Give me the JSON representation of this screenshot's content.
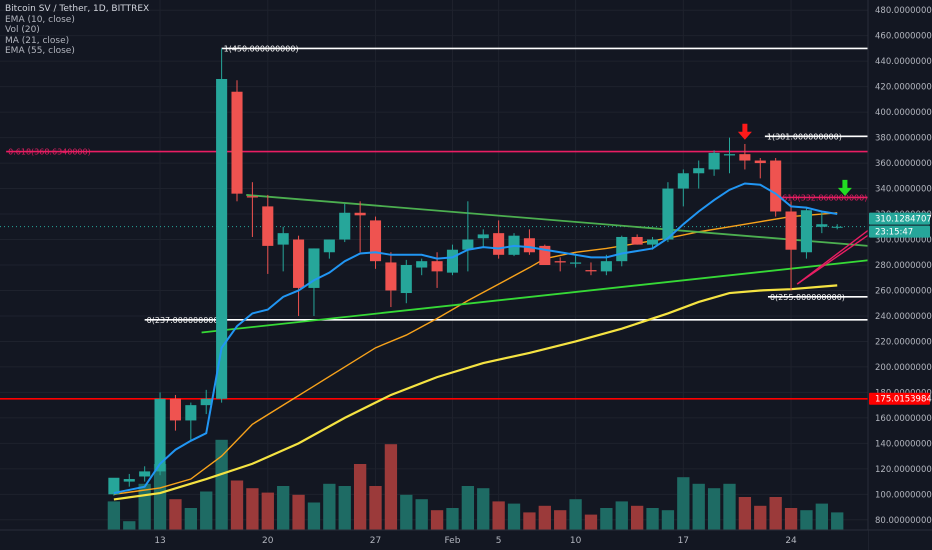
{
  "legend": {
    "title": "Bitcoin SV / Tether, 1D, BITTREX",
    "indicators": [
      "EMA (10, close)",
      "Vol (20)",
      "MA (21, close)",
      "EMA (55, close)"
    ]
  },
  "colors": {
    "background": "#131722",
    "grid": "#1e222d",
    "axis_text": "#b2b5be",
    "up": "#26a69a",
    "down": "#ef5350",
    "up_vol": "#1e6b64",
    "down_vol": "#9b3a3a",
    "ema10": "#2196f3",
    "ma21": "#f7a21b",
    "ema55": "#f5e342",
    "trend_green": "#4caf50",
    "trend_bright": "#36d936",
    "fib_pink": "#e91e63",
    "level_white": "#ffffff",
    "level_red": "#ff0000",
    "arrow_red": "#ff1a1a",
    "arrow_green": "#22dd22"
  },
  "chart_data": {
    "type": "candlestick",
    "y_axis": {
      "ticks": [
        "480.00000000",
        "460.00000000",
        "440.00000000",
        "420.00000000",
        "400.00000000",
        "380.00000000",
        "360.00000000",
        "340.00000000",
        "320.00000000",
        "300.00000000",
        "280.00000000",
        "260.00000000",
        "240.00000000",
        "220.00000000",
        "200.00000000",
        "180.00000000",
        "160.00000000",
        "140.00000000",
        "120.00000000",
        "100.00000000",
        "80.00000000"
      ],
      "tick_values": [
        480,
        460,
        440,
        420,
        400,
        380,
        360,
        340,
        320,
        300,
        280,
        260,
        240,
        220,
        200,
        180,
        160,
        140,
        120,
        100,
        80
      ],
      "range": [
        72,
        488
      ]
    },
    "x_axis": {
      "ticks": [
        "13",
        "20",
        "27",
        "Feb",
        "5",
        "10",
        "17",
        "24"
      ],
      "tick_day_index": [
        3,
        10,
        17,
        22,
        25,
        30,
        37,
        44
      ],
      "day_range": [
        -7.4,
        49
      ]
    },
    "price_label": {
      "value": "310.12847075",
      "countdown": "23:15:47"
    },
    "level_label": "175.01539845",
    "candles": [
      {
        "o": 100,
        "h": 112,
        "l": 99,
        "c": 113
      },
      {
        "o": 110,
        "h": 116,
        "l": 106,
        "c": 112
      },
      {
        "o": 114,
        "h": 122,
        "l": 110,
        "c": 118
      },
      {
        "o": 118,
        "h": 180,
        "l": 115,
        "c": 175
      },
      {
        "o": 175,
        "h": 178,
        "l": 150,
        "c": 158
      },
      {
        "o": 158,
        "h": 172,
        "l": 142,
        "c": 170
      },
      {
        "o": 170,
        "h": 182,
        "l": 163,
        "c": 175
      },
      {
        "o": 175,
        "h": 450,
        "l": 172,
        "c": 426
      },
      {
        "o": 416,
        "h": 425,
        "l": 330,
        "c": 336
      },
      {
        "o": 334,
        "h": 345,
        "l": 302,
        "c": 333
      },
      {
        "o": 326,
        "h": 335,
        "l": 273,
        "c": 295
      },
      {
        "o": 296,
        "h": 310,
        "l": 275,
        "c": 305
      },
      {
        "o": 300,
        "h": 303,
        "l": 240,
        "c": 262
      },
      {
        "o": 262,
        "h": 293,
        "l": 240,
        "c": 293
      },
      {
        "o": 290,
        "h": 300,
        "l": 285,
        "c": 300
      },
      {
        "o": 300,
        "h": 328,
        "l": 298,
        "c": 321
      },
      {
        "o": 321,
        "h": 330,
        "l": 290,
        "c": 319
      },
      {
        "o": 315,
        "h": 318,
        "l": 277,
        "c": 283
      },
      {
        "o": 282,
        "h": 290,
        "l": 247,
        "c": 260
      },
      {
        "o": 258,
        "h": 284,
        "l": 250,
        "c": 280
      },
      {
        "o": 278,
        "h": 285,
        "l": 272,
        "c": 283
      },
      {
        "o": 283,
        "h": 290,
        "l": 262,
        "c": 275
      },
      {
        "o": 274,
        "h": 296,
        "l": 272,
        "c": 292
      },
      {
        "o": 292,
        "h": 330,
        "l": 275,
        "c": 300
      },
      {
        "o": 301,
        "h": 308,
        "l": 294,
        "c": 304
      },
      {
        "o": 305,
        "h": 315,
        "l": 285,
        "c": 288
      },
      {
        "o": 288,
        "h": 305,
        "l": 287,
        "c": 303
      },
      {
        "o": 301,
        "h": 308,
        "l": 288,
        "c": 290
      },
      {
        "o": 295,
        "h": 296,
        "l": 280,
        "c": 280
      },
      {
        "o": 283,
        "h": 286,
        "l": 275,
        "c": 282
      },
      {
        "o": 281,
        "h": 289,
        "l": 278,
        "c": 282
      },
      {
        "o": 276,
        "h": 282,
        "l": 272,
        "c": 275
      },
      {
        "o": 275,
        "h": 288,
        "l": 272,
        "c": 283
      },
      {
        "o": 283,
        "h": 303,
        "l": 279,
        "c": 302
      },
      {
        "o": 302,
        "h": 304,
        "l": 296,
        "c": 296
      },
      {
        "o": 296,
        "h": 302,
        "l": 292,
        "c": 300
      },
      {
        "o": 300,
        "h": 345,
        "l": 298,
        "c": 340
      },
      {
        "o": 340,
        "h": 355,
        "l": 326,
        "c": 352
      },
      {
        "o": 352,
        "h": 362,
        "l": 340,
        "c": 356
      },
      {
        "o": 355,
        "h": 370,
        "l": 350,
        "c": 368
      },
      {
        "o": 366,
        "h": 380,
        "l": 352,
        "c": 367
      },
      {
        "o": 367,
        "h": 375,
        "l": 355,
        "c": 362
      },
      {
        "o": 362,
        "h": 364,
        "l": 348,
        "c": 360
      },
      {
        "o": 362,
        "h": 364,
        "l": 318,
        "c": 322
      },
      {
        "o": 322,
        "h": 330,
        "l": 260,
        "c": 292
      },
      {
        "o": 290,
        "h": 325,
        "l": 285,
        "c": 323
      },
      {
        "o": 310,
        "h": 322,
        "l": 305,
        "c": 312
      },
      {
        "o": 310,
        "h": 312,
        "l": 308,
        "c": 310
      }
    ],
    "volume": [
      26,
      8,
      42,
      60,
      28,
      20,
      35,
      82,
      45,
      38,
      34,
      40,
      32,
      25,
      42,
      40,
      60,
      40,
      78,
      32,
      28,
      18,
      20,
      40,
      38,
      26,
      24,
      16,
      22,
      18,
      28,
      14,
      20,
      26,
      22,
      20,
      18,
      48,
      42,
      38,
      42,
      30,
      22,
      30,
      20,
      18,
      24,
      16
    ],
    "volume_scale_max": 100,
    "ema10": [
      [
        0,
        101
      ],
      [
        2,
        106
      ],
      [
        3,
        124
      ],
      [
        4,
        135
      ],
      [
        5,
        142
      ],
      [
        6,
        148
      ],
      [
        7,
        215
      ],
      [
        8,
        232
      ],
      [
        9,
        242
      ],
      [
        10,
        245
      ],
      [
        11,
        255
      ],
      [
        12,
        260
      ],
      [
        13,
        268
      ],
      [
        14,
        274
      ],
      [
        15,
        283
      ],
      [
        16,
        289
      ],
      [
        17,
        290
      ],
      [
        18,
        288
      ],
      [
        19,
        288
      ],
      [
        20,
        288
      ],
      [
        21,
        285
      ],
      [
        22,
        286
      ],
      [
        23,
        292
      ],
      [
        24,
        294
      ],
      [
        25,
        293
      ],
      [
        26,
        295
      ],
      [
        27,
        294
      ],
      [
        28,
        292
      ],
      [
        29,
        290
      ],
      [
        30,
        288
      ],
      [
        31,
        286
      ],
      [
        32,
        286
      ],
      [
        33,
        289
      ],
      [
        34,
        291
      ],
      [
        35,
        293
      ],
      [
        36,
        301
      ],
      [
        37,
        312
      ],
      [
        38,
        322
      ],
      [
        39,
        331
      ],
      [
        40,
        339
      ],
      [
        41,
        344
      ],
      [
        42,
        343
      ],
      [
        43,
        336
      ],
      [
        44,
        326
      ],
      [
        45,
        325
      ],
      [
        46,
        322
      ],
      [
        47,
        320
      ]
    ],
    "ma21": [
      [
        0,
        100
      ],
      [
        3,
        105
      ],
      [
        5,
        112
      ],
      [
        7,
        130
      ],
      [
        9,
        155
      ],
      [
        11,
        170
      ],
      [
        13,
        185
      ],
      [
        15,
        200
      ],
      [
        17,
        215
      ],
      [
        19,
        225
      ],
      [
        21,
        238
      ],
      [
        23,
        252
      ],
      [
        25,
        265
      ],
      [
        27,
        278
      ],
      [
        28,
        285
      ],
      [
        30,
        290
      ],
      [
        32,
        293
      ],
      [
        34,
        297
      ],
      [
        36,
        301
      ],
      [
        38,
        306
      ],
      [
        40,
        310
      ],
      [
        42,
        314
      ],
      [
        44,
        318
      ],
      [
        46,
        320
      ],
      [
        47,
        321
      ]
    ],
    "ema55": [
      [
        0,
        96
      ],
      [
        3,
        101
      ],
      [
        6,
        112
      ],
      [
        9,
        124
      ],
      [
        12,
        140
      ],
      [
        15,
        160
      ],
      [
        18,
        178
      ],
      [
        21,
        192
      ],
      [
        24,
        203
      ],
      [
        27,
        211
      ],
      [
        30,
        220
      ],
      [
        33,
        230
      ],
      [
        36,
        242
      ],
      [
        38,
        251
      ],
      [
        40,
        258
      ],
      [
        42,
        260
      ],
      [
        44,
        261
      ],
      [
        46,
        263
      ],
      [
        47,
        264
      ]
    ],
    "horizontal_levels": [
      {
        "label": "1(450.000000000)",
        "value": 450,
        "x0": 7,
        "x1": 50
      },
      {
        "label": "1(381.000000000)",
        "value": 381,
        "x0": 42.3,
        "x1": 50
      },
      {
        "label": "0.618(368.6340000)",
        "value": 369,
        "x0": -7,
        "x1": 50
      },
      {
        "label": "0.618(332.868000000)",
        "value": 333,
        "x0": 42.8,
        "x1": 50
      },
      {
        "label": "0(237.000000000)",
        "value": 237,
        "x0": 2,
        "x1": 50
      },
      {
        "label": "0(255.000000000)",
        "value": 255,
        "x0": 42.5,
        "x1": 50
      },
      {
        "label": "",
        "value": 175,
        "x0": -7.4,
        "x1": 49
      }
    ],
    "trendlines": [
      {
        "from": [
          8.6,
          335
        ],
        "to": [
          50,
          294
        ],
        "style": "green"
      },
      {
        "from": [
          5.7,
          227
        ],
        "to": [
          50,
          285
        ],
        "style": "bright"
      },
      {
        "from": [
          44.4,
          265
        ],
        "to": [
          51.5,
          330
        ],
        "style": "pink"
      },
      {
        "from": [
          44.4,
          265
        ],
        "to": [
          50.4,
          315
        ],
        "style": "pink"
      }
    ],
    "arrows": [
      {
        "at": [
          41,
          383
        ],
        "direction": "down",
        "color": "red"
      },
      {
        "at": [
          47.5,
          339
        ],
        "direction": "down",
        "color": "green"
      }
    ]
  }
}
